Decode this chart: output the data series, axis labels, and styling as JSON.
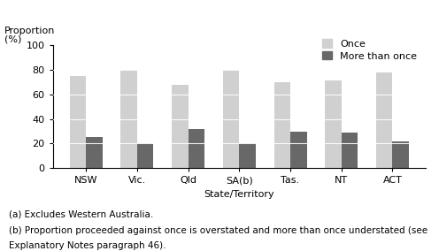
{
  "categories": [
    "NSW",
    "Vic.",
    "Qld",
    "SA(b)",
    "Tas.",
    "NT",
    "ACT"
  ],
  "once_values": [
    75,
    80,
    68,
    80,
    70,
    71,
    78
  ],
  "more_than_once_values": [
    25,
    20,
    32,
    20,
    30,
    29,
    22
  ],
  "once_color": "#d0d0d0",
  "more_than_once_color": "#686868",
  "ylabel_line1": "Proportion",
  "ylabel_line2": "(%)",
  "xlabel": "State/Territory",
  "ylim": [
    0,
    100
  ],
  "yticks": [
    0,
    20,
    40,
    60,
    80,
    100
  ],
  "legend_once": "Once",
  "legend_more": "More than once",
  "footnote1": "(a) Excludes Western Australia.",
  "footnote2": "(b) Proportion proceeded against once is overstated and more than once understated (see",
  "footnote3": "Explanatory Notes paragraph 46).",
  "bar_width": 0.32,
  "axis_fontsize": 8,
  "tick_fontsize": 8,
  "legend_fontsize": 8,
  "footnote_fontsize": 7.5
}
